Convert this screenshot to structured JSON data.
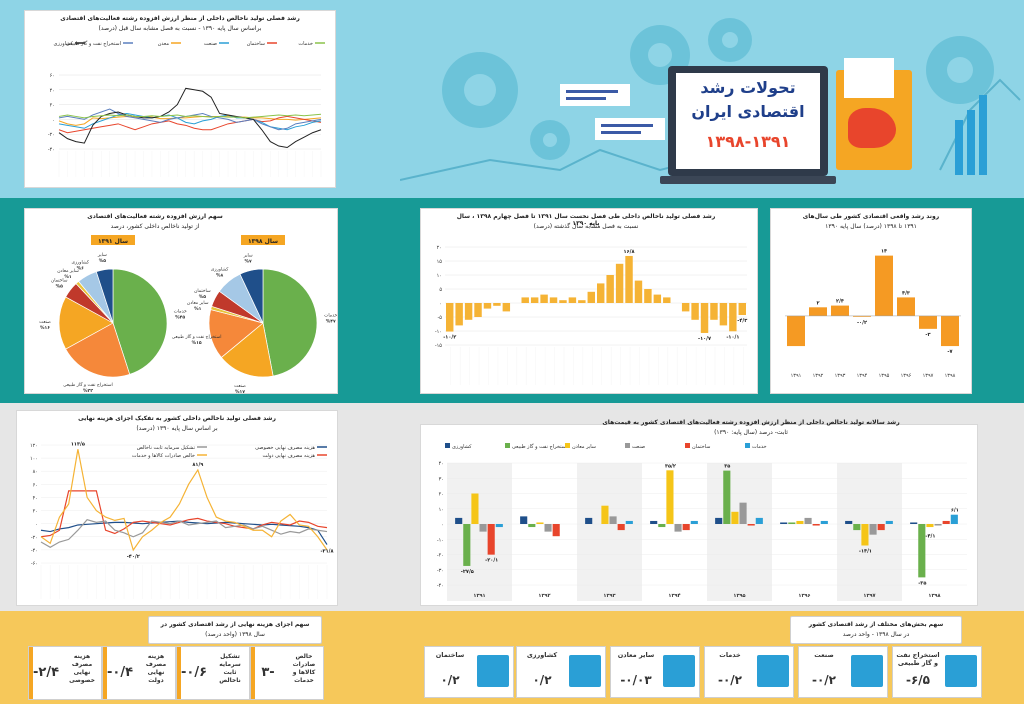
{
  "colors": {
    "band_top": "#8ed4e6",
    "band_green": "#179a96",
    "band_gray": "#e6e6e6",
    "band_yellow": "#f6c85a",
    "bar_orange": "#f5b335",
    "pos_orange": "#f59a23",
    "blue": "#2a9fd6"
  },
  "header": {
    "title_line1": "تحولات رشد",
    "title_line2": "اقتصادی ایران",
    "years": "۱۳۹۸-۱۳۹۱"
  },
  "c1": {
    "title1": "رشد فصلی تولید ناخالص داخلی از منظر ارزش افزوده رشته فعالیت‌های اقتصادی",
    "title2": "براساس سال پایه ۱۳۹۰ - نسبت به فصل مشابه سال قبل (درصد)",
    "legend": [
      "خدمات",
      "ساختمان",
      "صنعت",
      "معدن",
      "استخراج نفت و گاز طبیعی",
      "کشاورزی"
    ],
    "yticks": [
      "۶۰",
      "۴۰",
      "۲۰",
      "۰",
      "-۲۰",
      "-۴۰"
    ]
  },
  "c2": {
    "title1": "سهم ارزش افزوده رشته فعالیت‌های اقتصادی",
    "title2": "از تولید ناخالص داخلی کشور، درصد",
    "year_left": "سال ۱۳۹۱",
    "year_right": "سال ۱۳۹۸"
  },
  "c3": {
    "title1": "رشد فصلی تولید ناخالص داخلی طی فصل نخست سال ۱۳۹۱ تا فصل چهارم ۱۳۹۸ ، سال پایه ۱۳۹۰",
    "title2": "نسبت به فصل مشابه سال گذشته (درصد)",
    "yticks": [
      "۲۰",
      "۱۵",
      "۱۰",
      "۵",
      "۰",
      "-۵",
      "-۱۰",
      "-۱۵"
    ]
  },
  "c4": {
    "title1": "روند رشد واقعی اقتصادی کشور طی سال‌های",
    "title2": "۱۳۹۱ تا ۱۳۹۸ (درصد) سال پایه ۱۳۹۰"
  },
  "c5": {
    "title1": "رشد فصلی تولید ناخالص داخلی کشور به تفکیک اجزای هزینه نهایی",
    "title2": "بر اساس سال پایه ۱۳۹۰ (درصد)",
    "legend": [
      "هزینه مصرف نهایی خصوصی",
      "هزینه مصرف نهایی دولت",
      "تشکیل سرمایه ثابت ناخالص",
      "خالص صادرات کالاها و خدمات"
    ],
    "yticks": [
      "۱۲۰",
      "۱۰۰",
      "۸۰",
      "۶۰",
      "۴۰",
      "۲۰",
      "۰",
      "-۲۰",
      "-۴۰",
      "-۶۰"
    ]
  },
  "c6": {
    "title1": "رشد سالانه تولید ناخالص داخلی از منظر ارزش افزوده رشته فعالیت‌های اقتصادی کشور به قیمت‌های",
    "title2": "ثابت- درصد (سال پایه: ۱۳۹۰)",
    "legend": [
      "کشاورزی",
      "استخراج نفت و گاز طبیعی",
      "سایر معادن",
      "صنعت",
      "ساختمان",
      "خدمات"
    ],
    "yticks": [
      "۴۰",
      "۳۰",
      "۲۰",
      "۱۰",
      "۰",
      "-۱۰",
      "-۲۰",
      "-۳۰",
      "-۴۰"
    ]
  },
  "c7": {
    "title1": "سهم اجزای هزینه نهایی از رشد اقتصادی کشور در",
    "title2": "سال ۱۳۹۸ (واحد درصد)",
    "items": [
      {
        "label": "خالص صادرات کالاها و خدمات",
        "value": "۳-"
      },
      {
        "label": "تشکیل سرمایه ثابت ناخالص",
        "value": "-۰/۶"
      },
      {
        "label": "هزینه مصرف نهایی دولت",
        "value": "-۰/۴"
      },
      {
        "label": "هزینه مصرف نهایی خصوصی",
        "value": "-۲/۴"
      }
    ]
  },
  "c8": {
    "title1": "سهم بخش‌های مختلف از رشد اقتصادی کشور",
    "title2": "در سال ۱۳۹۸ - واحد درصد",
    "items": [
      {
        "label": "استخراج نفت و گاز طبیعی",
        "value": "-۶/۵"
      },
      {
        "label": "صنعت",
        "value": "-۰/۲"
      },
      {
        "label": "خدمات",
        "value": "-۰/۲"
      },
      {
        "label": "سایر معادن",
        "value": "-۰/۰۳"
      },
      {
        "label": "کشاورزی",
        "value": "۰/۲"
      },
      {
        "label": "ساختمان",
        "value": "۰/۲"
      }
    ]
  },
  "chart_data": [
    {
      "id": "quarterly_sector_growth",
      "type": "line",
      "title": "رشد فصلی تولید ناخالص داخلی از منظر ارزش افزوده رشته فعالیت‌های اقتصادی",
      "ylim": [
        -40,
        60
      ],
      "series": [
        {
          "name": "خدمات",
          "values": [
            -2,
            -6,
            -8,
            -6,
            2,
            1,
            2,
            3,
            4,
            3,
            4,
            3,
            1,
            1,
            2,
            2,
            3,
            4,
            4,
            4,
            5,
            3,
            3,
            2,
            2,
            1,
            0,
            0,
            -1,
            0,
            1,
            2
          ]
        },
        {
          "name": "ساختمان",
          "values": [
            -14,
            -18,
            -16,
            -14,
            -12,
            -10,
            -8,
            -6,
            -10,
            -14,
            -10,
            -6,
            -4,
            -2,
            -6,
            -8,
            -12,
            -14,
            -14,
            -10,
            -6,
            -4,
            -2,
            0,
            -3,
            -2,
            2,
            4,
            2,
            0,
            -2,
            -4
          ]
        },
        {
          "name": "صنعت",
          "values": [
            -6,
            -8,
            -10,
            -12,
            -6,
            -2,
            2,
            6,
            8,
            6,
            4,
            2,
            4,
            6,
            2,
            -4,
            -6,
            -2,
            0,
            4,
            6,
            2,
            2,
            0,
            -4,
            -10,
            -12,
            -14,
            -10,
            -8,
            -4,
            -2
          ]
        },
        {
          "name": "معدن",
          "values": [
            2,
            4,
            2,
            0,
            6,
            10,
            14,
            8,
            4,
            2,
            0,
            -2,
            -4,
            0,
            2,
            4,
            6,
            8,
            4,
            2,
            0,
            -4,
            -2,
            0,
            -6,
            -10,
            -14,
            -12,
            -6,
            -4,
            -2,
            0
          ]
        },
        {
          "name": "استخراج نفت و گاز طبیعی",
          "values": [
            -18,
            -26,
            -30,
            -32,
            -8,
            4,
            8,
            10,
            6,
            4,
            2,
            2,
            4,
            10,
            20,
            42,
            40,
            38,
            30,
            8,
            6,
            4,
            2,
            0,
            -14,
            -30,
            -36,
            -38,
            -30,
            -24,
            -18,
            -14
          ]
        },
        {
          "name": "کشاورزی",
          "values": [
            4,
            6,
            4,
            2,
            4,
            5,
            6,
            5,
            6,
            4,
            4,
            5,
            4,
            5,
            6,
            4,
            5,
            4,
            3,
            4,
            3,
            3,
            2,
            3,
            4,
            5,
            6,
            5,
            6,
            5,
            6,
            7
          ]
        }
      ]
    },
    {
      "id": "share_1391",
      "type": "pie",
      "title": "سال ۱۳۹۱",
      "slices": [
        {
          "label": "خدمات",
          "value": 45
        },
        {
          "label": "استخراج نفت و گاز طبیعی",
          "value": 22
        },
        {
          "label": "صنعت",
          "value": 16
        },
        {
          "label": "ساختمان",
          "value": 5
        },
        {
          "label": "سایر معادن",
          "value": 1
        },
        {
          "label": "کشاورزی",
          "value": 6
        },
        {
          "label": "سایر",
          "value": 5
        }
      ]
    },
    {
      "id": "share_1398",
      "type": "pie",
      "title": "سال ۱۳۹۸",
      "slices": [
        {
          "label": "خدمات",
          "value": 47
        },
        {
          "label": "صنعت",
          "value": 17
        },
        {
          "label": "استخراج نفت و گاز طبیعی",
          "value": 15
        },
        {
          "label": "سایر معادن",
          "value": 1
        },
        {
          "label": "ساختمان",
          "value": 5
        },
        {
          "label": "کشاورزی",
          "value": 8
        },
        {
          "label": "سایر",
          "value": 7
        }
      ]
    },
    {
      "id": "quarterly_gdp_growth",
      "type": "bar",
      "ylim": [
        -15,
        20
      ],
      "values": [
        -10.2,
        -8,
        -6,
        -5,
        -2,
        -1,
        -3,
        0,
        2,
        2,
        3,
        2,
        1,
        2,
        1,
        4,
        7,
        10,
        14,
        16.8,
        8,
        5,
        3,
        2,
        0,
        -3,
        -6,
        -10.7,
        -6,
        -8,
        -10.1,
        -4.3
      ],
      "annotations": [
        "-۱۰/۲",
        "۱۶/۸",
        "-۱۰/۷",
        "-۱۰/۱",
        "-۴/۳"
      ]
    },
    {
      "id": "annual_gdp_growth",
      "type": "bar",
      "categories": [
        "۱۳۹۱",
        "۱۳۹۲",
        "۱۳۹۳",
        "۱۳۹۴",
        "۱۳۹۵",
        "۱۳۹۶",
        "۱۳۹۷",
        "۱۳۹۸"
      ],
      "values": [
        -7,
        2,
        2.4,
        -0.2,
        14,
        4.3,
        -3,
        -7
      ],
      "labels": [
        "",
        "۲",
        "۲/۴",
        "-۰/۲",
        "۱۴",
        "۴/۳",
        "-۳",
        "-۷"
      ]
    },
    {
      "id": "expenditure_growth",
      "type": "line",
      "ylim": [
        -60,
        120
      ],
      "series": [
        {
          "name": "هزینه مصرف نهایی خصوصی",
          "values": [
            -10,
            -12,
            -8,
            -6,
            -2,
            -1,
            0,
            1,
            2,
            2,
            1,
            0,
            1,
            2,
            3,
            4,
            2,
            1,
            0,
            1,
            2,
            1,
            0,
            -1,
            -2,
            -1,
            -2,
            -3,
            -4,
            -6,
            -10,
            -31.8
          ]
        },
        {
          "name": "هزینه مصرف نهایی دولت",
          "values": [
            -20,
            -18,
            -10,
            50,
            50,
            50,
            50,
            -10,
            -15,
            -8,
            2,
            4,
            2,
            0,
            -2,
            2,
            6,
            8,
            4,
            2,
            0,
            -4,
            -6,
            -8,
            -2,
            2,
            0,
            -2,
            4,
            2,
            -4,
            -6
          ]
        },
        {
          "name": "تشکیل سرمایه ثابت ناخالص",
          "values": [
            -28,
            -36,
            -28,
            -24,
            -10,
            6,
            2,
            4,
            -10,
            -14,
            -20,
            -14,
            4,
            2,
            0,
            4,
            -2,
            0,
            2,
            4,
            -6,
            -4,
            -2,
            -8,
            -4,
            -10,
            -16,
            -12,
            -14,
            -8,
            -10,
            -12
          ]
        },
        {
          "name": "خالص صادرات کالاها و خدمات",
          "values": [
            -20,
            -30,
            10,
            30,
            113.5,
            40,
            20,
            10,
            5,
            8,
            -40.2,
            -20,
            -10,
            2,
            10,
            30,
            60,
            81.9,
            40,
            10,
            4,
            2,
            -4,
            -10,
            -10,
            -20,
            4,
            14,
            -2,
            -4,
            -20,
            -40
          ]
        }
      ],
      "annotations": [
        "۱۱۳/۵",
        "۸۱/۹",
        "-۴۰/۲",
        "-۳۱/۸"
      ]
    },
    {
      "id": "annual_sector_growth",
      "type": "bar",
      "categories": [
        "۱۳۹۱",
        "۱۳۹۲",
        "۱۳۹۳",
        "۱۳۹۴",
        "۱۳۹۵",
        "۱۳۹۶",
        "۱۳۹۷",
        "۱۳۹۸"
      ],
      "series": [
        {
          "name": "کشاورزی",
          "values": [
            4,
            5,
            4,
            2,
            4,
            1,
            2,
            1
          ]
        },
        {
          "name": "استخراج نفت و گاز طبیعی",
          "values": [
            -27.5,
            -2,
            0,
            -2,
            35,
            1,
            -4,
            -35
          ]
        },
        {
          "name": "سایر معادن",
          "values": [
            20,
            1,
            12,
            35.2,
            8,
            2,
            -14.1,
            -2
          ]
        },
        {
          "name": "صنعت",
          "values": [
            -5,
            -5,
            5,
            -5,
            14,
            4,
            -7,
            -1
          ]
        },
        {
          "name": "ساختمان",
          "values": [
            -20.1,
            -8,
            -4,
            -4,
            -1,
            -1,
            -4,
            2
          ]
        },
        {
          "name": "خدمات",
          "values": [
            -2,
            0,
            2,
            2,
            4,
            2,
            2,
            6.1
          ]
        }
      ],
      "annotations": [
        "-۲۷/۵",
        "-۲۰/۱",
        "۳۵/۲",
        "۳۵",
        "-۱۴/۱",
        "-۳۵",
        "-۴/۱",
        "۶/۱"
      ]
    }
  ]
}
